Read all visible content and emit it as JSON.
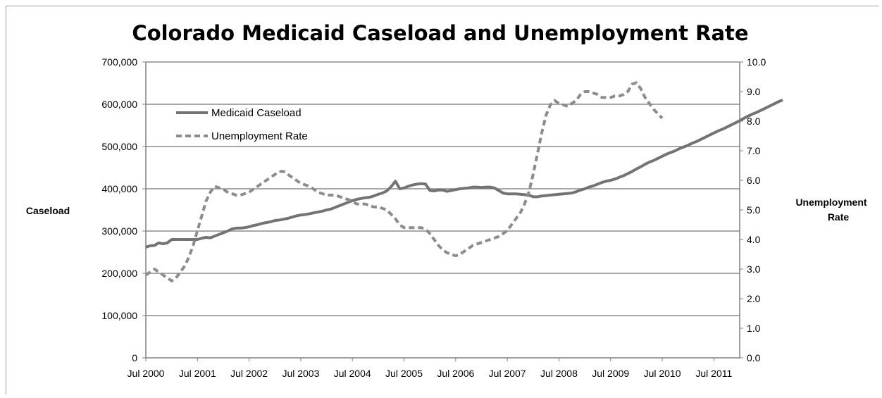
{
  "chart_data": {
    "type": "line",
    "title": "Colorado Medicaid Caseload and Unemployment Rate",
    "ylabel": "Caseload",
    "y2label": [
      "Unemployment",
      "Rate"
    ],
    "ylim": [
      0,
      700000
    ],
    "y2lim": [
      0,
      10
    ],
    "yticks": [
      "0",
      "100,000",
      "200,000",
      "300,000",
      "400,000",
      "500,000",
      "600,000",
      "700,000"
    ],
    "y2ticks": [
      "0.0",
      "1.0",
      "2.0",
      "3.0",
      "4.0",
      "5.0",
      "6.0",
      "7.0",
      "8.0",
      "9.0",
      "10.0"
    ],
    "xticks": [
      "Jul 2000",
      "Jul 2001",
      "Jul 2002",
      "Jul 2003",
      "Jul 2004",
      "Jul 2005",
      "Jul 2006",
      "Jul 2007",
      "Jul 2008",
      "Jul 2009",
      "Jul 2010",
      "Jul 2011"
    ],
    "x_start": "Jul 2000",
    "x_end": "Jan 2012",
    "grid": true,
    "legend_position": "upper-left",
    "colors": {
      "medicaid": "#737373",
      "unemployment": "#8c8c8c",
      "grid": "#8c8c8c"
    },
    "series": [
      {
        "name": "Medicaid Caseload",
        "axis": "left",
        "style": "solid",
        "monthly_from": "Jul 2000",
        "values": [
          262000,
          265000,
          266000,
          272000,
          270000,
          272000,
          280000,
          280000,
          280000,
          280000,
          280000,
          280000,
          280000,
          283000,
          285000,
          284000,
          288000,
          292000,
          296000,
          300000,
          305000,
          307000,
          307000,
          308000,
          310000,
          313000,
          315000,
          318000,
          320000,
          322000,
          325000,
          326000,
          328000,
          330000,
          333000,
          336000,
          338000,
          339000,
          341000,
          343000,
          345000,
          347000,
          350000,
          352000,
          356000,
          360000,
          364000,
          368000,
          372000,
          375000,
          377000,
          379000,
          380000,
          383000,
          387000,
          390000,
          395000,
          405000,
          418000,
          400000,
          402000,
          406000,
          409000,
          411000,
          412000,
          411000,
          396000,
          395000,
          397000,
          397000,
          394000,
          396000,
          398000,
          400000,
          401000,
          402000,
          404000,
          404000,
          403000,
          404000,
          404000,
          402000,
          396000,
          390000,
          388000,
          388000,
          388000,
          387000,
          386000,
          385000,
          381000,
          381000,
          383000,
          384000,
          385000,
          386000,
          387000,
          388000,
          389000,
          390000,
          393000,
          397000,
          400000,
          404000,
          407000,
          411000,
          415000,
          418000,
          420000,
          423000,
          427000,
          431000,
          436000,
          441000,
          447000,
          452000,
          458000,
          463000,
          467000,
          472000,
          477000,
          482000,
          486000,
          490000,
          495000,
          499000,
          503000,
          508000,
          512000,
          517000,
          522000,
          527000,
          532000,
          537000,
          541000,
          546000,
          551000,
          556000,
          561000,
          567000,
          572000,
          577000,
          581000,
          586000,
          591000,
          596000,
          601000,
          606000,
          610000
        ]
      },
      {
        "name": "Unemployment Rate",
        "axis": "right",
        "style": "dashed",
        "monthly_from": "Jul 2000",
        "values": [
          2.8,
          2.9,
          3.0,
          2.9,
          2.8,
          2.7,
          2.6,
          2.7,
          2.9,
          3.1,
          3.4,
          3.8,
          4.3,
          4.8,
          5.3,
          5.6,
          5.8,
          5.75,
          5.7,
          5.6,
          5.55,
          5.5,
          5.5,
          5.55,
          5.6,
          5.7,
          5.8,
          5.9,
          6.0,
          6.1,
          6.2,
          6.3,
          6.3,
          6.2,
          6.1,
          6.0,
          5.9,
          5.85,
          5.8,
          5.7,
          5.6,
          5.55,
          5.5,
          5.5,
          5.5,
          5.45,
          5.4,
          5.35,
          5.3,
          5.2,
          5.2,
          5.2,
          5.15,
          5.1,
          5.1,
          5.05,
          5.0,
          4.85,
          4.7,
          4.5,
          4.4,
          4.4,
          4.4,
          4.4,
          4.4,
          4.35,
          4.2,
          4.0,
          3.8,
          3.65,
          3.55,
          3.5,
          3.45,
          3.5,
          3.6,
          3.7,
          3.8,
          3.85,
          3.9,
          3.95,
          4.0,
          4.05,
          4.1,
          4.2,
          4.3,
          4.5,
          4.7,
          4.9,
          5.2,
          5.6,
          6.2,
          6.9,
          7.6,
          8.2,
          8.55,
          8.7,
          8.6,
          8.55,
          8.5,
          8.6,
          8.7,
          8.9,
          9.0,
          9.0,
          8.95,
          8.9,
          8.8,
          8.8,
          8.8,
          8.85,
          8.85,
          8.9,
          9.0,
          9.25,
          9.3,
          9.1,
          8.8,
          8.6,
          8.4,
          8.25,
          8.1
        ]
      }
    ]
  }
}
